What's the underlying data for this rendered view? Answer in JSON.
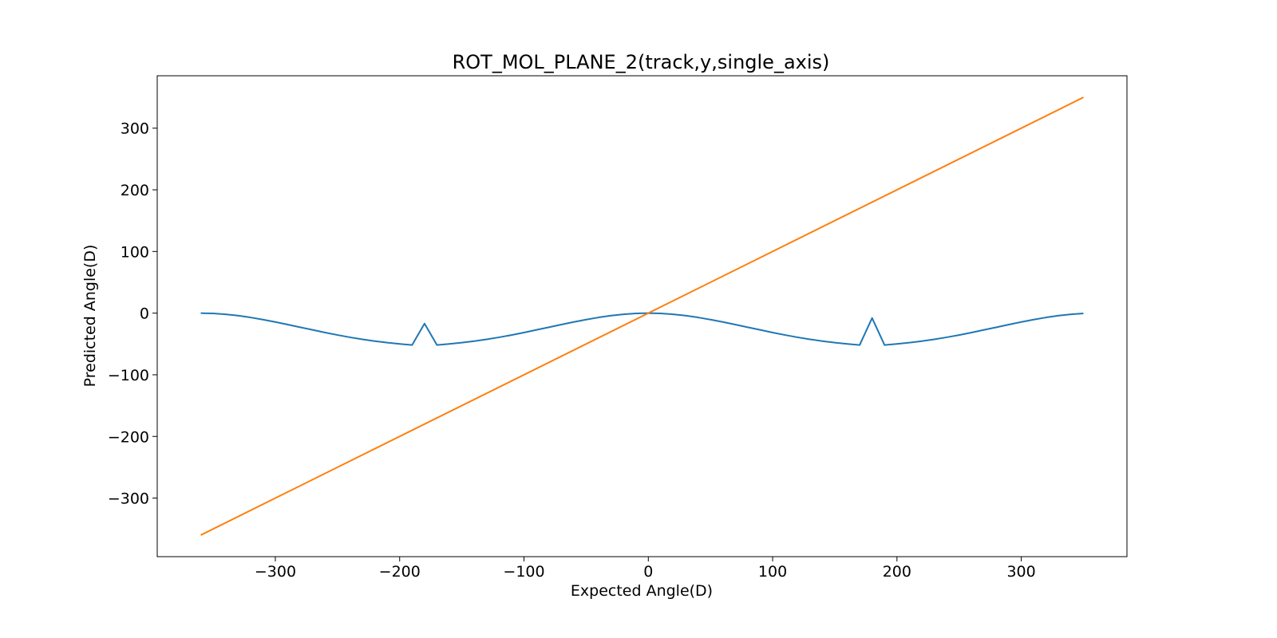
{
  "chart_data": {
    "type": "line",
    "title": "ROT_MOL_PLANE_2(track,y,single_axis)",
    "xlabel": "Expected Angle(D)",
    "ylabel": "Predicted Angle(D)",
    "xlim": [
      -395,
      385
    ],
    "ylim": [
      -395,
      385
    ],
    "xticks": [
      -300,
      -200,
      -100,
      0,
      100,
      200,
      300
    ],
    "yticks": [
      -300,
      -200,
      -100,
      0,
      100,
      200,
      300
    ],
    "grid": false,
    "legend": "none",
    "series": [
      {
        "color": "#1f77b4",
        "x": [
          -360,
          -350,
          -340,
          -330,
          -320,
          -310,
          -300,
          -290,
          -280,
          -270,
          -260,
          -250,
          -240,
          -230,
          -220,
          -210,
          -200,
          -190,
          -180,
          -170,
          -160,
          -150,
          -140,
          -130,
          -120,
          -110,
          -100,
          -90,
          -80,
          -70,
          -60,
          -50,
          -40,
          -30,
          -20,
          -10,
          0,
          10,
          20,
          30,
          40,
          50,
          60,
          70,
          80,
          90,
          100,
          110,
          120,
          130,
          140,
          150,
          160,
          170,
          180,
          190,
          200,
          210,
          220,
          230,
          240,
          250,
          260,
          270,
          280,
          290,
          300,
          310,
          320,
          330,
          340,
          350
        ],
        "y": [
          0,
          -0.5,
          -1.9,
          -4.1,
          -7.0,
          -10.5,
          -14.4,
          -18.6,
          -22.9,
          -27.2,
          -31.5,
          -35.5,
          -39.2,
          -42.5,
          -45.4,
          -47.9,
          -49.9,
          -51.7,
          -17,
          -51.7,
          -49.9,
          -47.9,
          -45.4,
          -42.5,
          -39.2,
          -35.5,
          -31.5,
          -27.2,
          -22.9,
          -18.6,
          -14.4,
          -10.5,
          -7.0,
          -4.1,
          -1.9,
          -0.5,
          0,
          -0.5,
          -1.9,
          -4.1,
          -7.0,
          -10.5,
          -14.4,
          -18.6,
          -22.9,
          -27.2,
          -31.5,
          -35.5,
          -39.2,
          -42.5,
          -45.4,
          -47.9,
          -49.9,
          -51.7,
          -8,
          -51.7,
          -49.9,
          -47.9,
          -45.4,
          -42.5,
          -39.2,
          -35.5,
          -31.5,
          -27.2,
          -22.9,
          -18.6,
          -14.4,
          -10.5,
          -7.0,
          -4.1,
          -1.9,
          -0.5
        ]
      },
      {
        "color": "#ff7f0e",
        "x": [
          -360,
          350
        ],
        "y": [
          -360,
          350
        ]
      }
    ]
  }
}
